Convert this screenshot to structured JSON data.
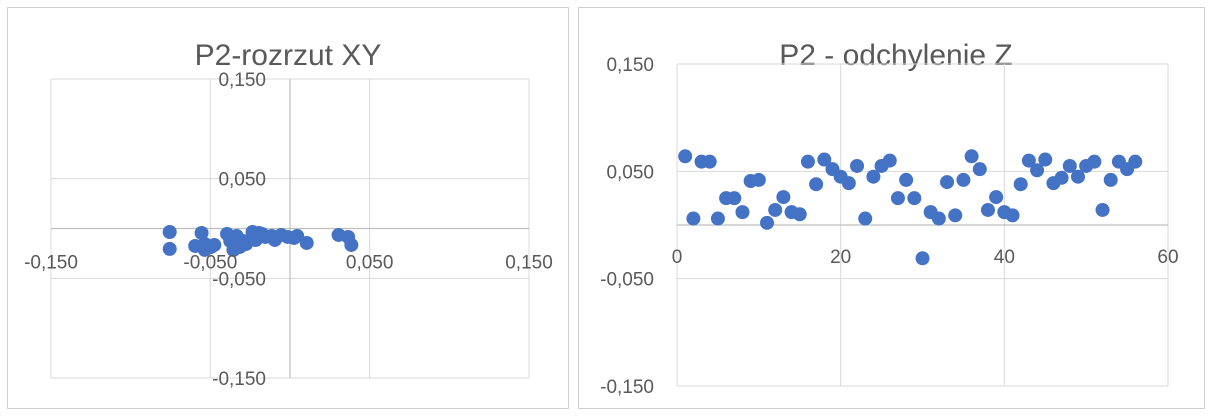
{
  "chart_data": [
    {
      "type": "scatter",
      "title": "P2-rozrzut XY",
      "xlim": [
        -0.15,
        0.15
      ],
      "ylim": [
        -0.15,
        0.15
      ],
      "xticks": [
        -0.15,
        -0.05,
        0.05,
        0.15
      ],
      "yticks": [
        0.15,
        0.05,
        -0.05,
        -0.15
      ],
      "xtick_labels": [
        "-0,150",
        "-0,050",
        "0,050",
        "0,150"
      ],
      "ytick_labels": [
        "0,150",
        "0,050",
        "-0,050",
        "-0,150"
      ],
      "grid": true,
      "marker_color": "#4472C4",
      "x": [
        -0.0755,
        -0.0755,
        -0.0595,
        -0.0555,
        -0.0535,
        -0.0535,
        -0.0495,
        -0.0475,
        -0.0395,
        -0.0375,
        -0.0355,
        -0.0335,
        -0.0315,
        -0.0295,
        -0.0275,
        -0.0235,
        -0.0215,
        -0.0195,
        -0.0175,
        -0.0155,
        -0.0115,
        -0.0095,
        -0.0055,
        -0.0015,
        0.0025,
        0.0045,
        0.0105,
        0.0305,
        0.0365,
        0.0385
      ],
      "y": [
        -0.0035,
        -0.0205,
        -0.0175,
        -0.0045,
        -0.0155,
        -0.0215,
        -0.0185,
        -0.0165,
        -0.0055,
        -0.0125,
        -0.0215,
        -0.0075,
        -0.0185,
        -0.0125,
        -0.0155,
        -0.0035,
        -0.0115,
        -0.0045,
        -0.0055,
        -0.0085,
        -0.0075,
        -0.0115,
        -0.0065,
        -0.0085,
        -0.0095,
        -0.0075,
        -0.0145,
        -0.0065,
        -0.0085,
        -0.0165
      ]
    },
    {
      "type": "scatter",
      "title": "P2 - odchylenie Z",
      "xlim": [
        0,
        60
      ],
      "ylim": [
        -0.15,
        0.15
      ],
      "xticks": [
        0,
        20,
        40,
        60
      ],
      "yticks": [
        0.15,
        0.05,
        -0.05,
        -0.15
      ],
      "xtick_labels": [
        "0",
        "20",
        "40",
        "60"
      ],
      "ytick_labels": [
        "0,150",
        "0,050",
        "-0,050",
        "-0,150"
      ],
      "grid": true,
      "marker_color": "#4472C4",
      "x": [
        1,
        2,
        3,
        4,
        5,
        6,
        7,
        8,
        9,
        10,
        11,
        12,
        13,
        14,
        15,
        16,
        17,
        18,
        19,
        20,
        21,
        22,
        23,
        24,
        25,
        26,
        27,
        28,
        29,
        30,
        31,
        32,
        33,
        34,
        35,
        36,
        37,
        38,
        39,
        40,
        41,
        42,
        43,
        44,
        45,
        46,
        47,
        48,
        49,
        50,
        51,
        52,
        53,
        54,
        55,
        56
      ],
      "y": [
        0.064,
        0.006,
        0.059,
        0.059,
        0.006,
        0.025,
        0.025,
        0.012,
        0.041,
        0.042,
        0.002,
        0.014,
        0.026,
        0.012,
        0.01,
        0.059,
        0.038,
        0.061,
        0.052,
        0.045,
        0.039,
        0.055,
        0.006,
        0.045,
        0.055,
        0.06,
        0.025,
        0.042,
        0.025,
        -0.031,
        0.012,
        0.006,
        0.04,
        0.009,
        0.042,
        0.064,
        0.052,
        0.014,
        0.026,
        0.012,
        0.009,
        0.038,
        0.06,
        0.051,
        0.061,
        0.039,
        0.044,
        0.055,
        0.045,
        0.055,
        0.059,
        0.014,
        0.042,
        0.059,
        0.052,
        0.059
      ]
    }
  ]
}
